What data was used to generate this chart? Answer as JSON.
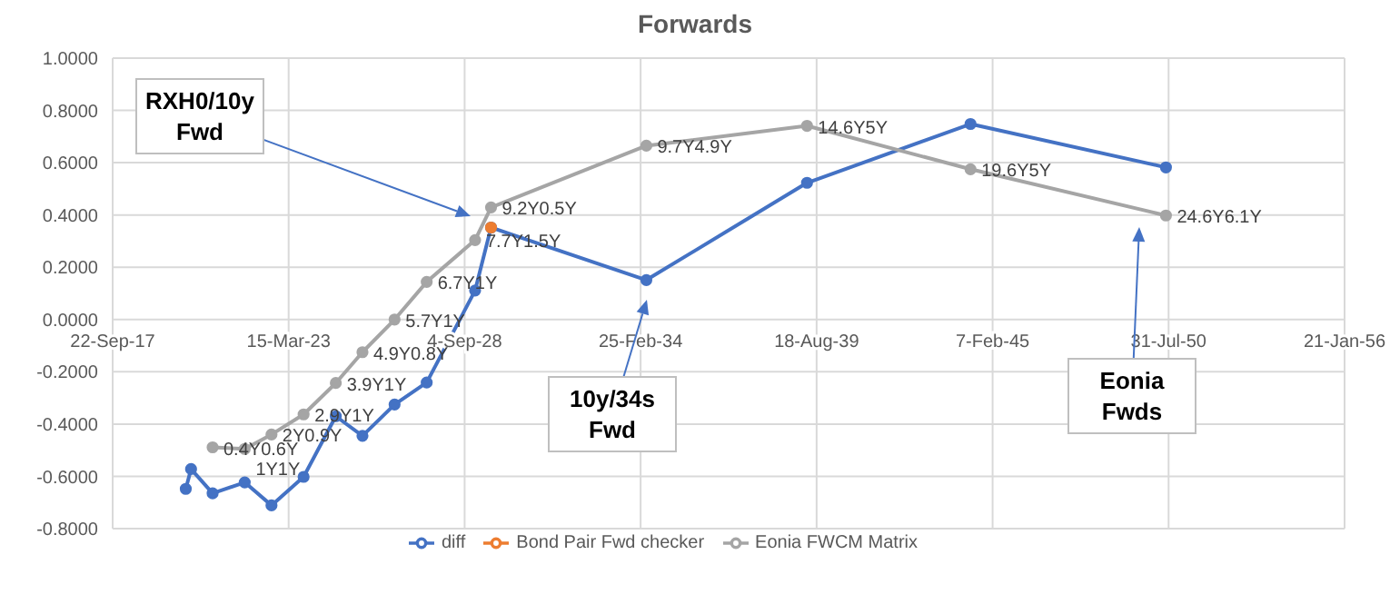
{
  "chart_data": {
    "type": "line",
    "title": "Forwards",
    "series": [
      {
        "name": "diff",
        "color": "#4472c4",
        "x": [
          "2020-01",
          "2020-03",
          "2020-11",
          "2021-11",
          "2022-09",
          "2023-09",
          "2024-09",
          "2025-07",
          "2026-07",
          "2027-07",
          "2029-01",
          "2029-07",
          "2034-05",
          "2039-05",
          "2044-06",
          "2050-07"
        ],
        "values": [
          -0.648,
          -0.572,
          -0.665,
          -0.623,
          -0.711,
          -0.602,
          -0.37,
          -0.445,
          -0.325,
          -0.241,
          0.111,
          0.352,
          0.151,
          0.523,
          0.748,
          0.582
        ]
      },
      {
        "name": "Bond Pair Fwd checker",
        "color": "#ed7d31",
        "x": [
          "2029-07"
        ],
        "values": [
          0.352
        ]
      },
      {
        "name": "Eonia FWCM Matrix",
        "color": "#a5a5a5",
        "x": [
          "2020-11",
          "2021-11",
          "2022-09",
          "2023-09",
          "2024-09",
          "2025-07",
          "2026-07",
          "2027-07",
          "2029-01",
          "2029-07",
          "2034-05",
          "2039-05",
          "2044-06",
          "2050-07"
        ],
        "values": [
          -0.489,
          -0.495,
          -0.44,
          -0.363,
          -0.243,
          -0.125,
          0.0,
          0.144,
          0.304,
          0.429,
          0.665,
          0.741,
          0.575,
          0.398
        ]
      }
    ],
    "xlim": [
      "2017-09-22",
      "2056-01-21"
    ],
    "xticks": [
      {
        "value": "2017-09-22",
        "label": "22-Sep-17"
      },
      {
        "value": "2023-03-15",
        "label": "15-Mar-23"
      },
      {
        "value": "2028-09-04",
        "label": "4-Sep-28"
      },
      {
        "value": "2034-02-25",
        "label": "25-Feb-34"
      },
      {
        "value": "2039-08-18",
        "label": "18-Aug-39"
      },
      {
        "value": "2045-02-07",
        "label": "7-Feb-45"
      },
      {
        "value": "2050-07-31",
        "label": "31-Jul-50"
      },
      {
        "value": "2056-01-21",
        "label": "21-Jan-56"
      }
    ],
    "ylim": [
      -0.8,
      1.0
    ],
    "yticks": [
      {
        "value": -0.8,
        "label": "-0.8000"
      },
      {
        "value": -0.6,
        "label": "-0.6000"
      },
      {
        "value": -0.4,
        "label": "-0.4000"
      },
      {
        "value": -0.2,
        "label": "-0.2000"
      },
      {
        "value": 0,
        "label": "0.0000"
      },
      {
        "value": 0.2,
        "label": "0.2000"
      },
      {
        "value": 0.4,
        "label": "0.4000"
      },
      {
        "value": 0.6,
        "label": "0.6000"
      },
      {
        "value": 0.8,
        "label": "0.8000"
      },
      {
        "value": 1.0,
        "label": "1.0000"
      }
    ],
    "annotations": [
      "RXH0/10y Fwd",
      "10y/34s Fwd",
      "Eonia Fwds",
      {
        "text": "0.4Y0.6Y",
        "x": "2020-11",
        "y": -0.489
      },
      {
        "text": "1Y1Y",
        "x": "2021-11",
        "y": -0.495
      },
      {
        "text": "2Y0.9Y",
        "x": "2022-09",
        "y": -0.44
      },
      {
        "text": "2.9Y1Y",
        "x": "2023-09",
        "y": -0.363
      },
      {
        "text": "3.9Y1Y",
        "x": "2024-09",
        "y": -0.243
      },
      {
        "text": "4.9Y0.8Y",
        "x": "2025-07",
        "y": -0.125
      },
      {
        "text": "5.7Y1Y",
        "x": "2026-07",
        "y": 0.0
      },
      {
        "text": "6.7Y1Y",
        "x": "2027-07",
        "y": 0.144
      },
      {
        "text": "7.7Y1.5Y",
        "x": "2029-01",
        "y": 0.304
      },
      {
        "text": "9.2Y0.5Y",
        "x": "2029-07",
        "y": 0.429
      },
      {
        "text": "9.7Y4.9Y",
        "x": "2034-05",
        "y": 0.665
      },
      {
        "text": "14.6Y5Y",
        "x": "2039-05",
        "y": 0.741
      },
      {
        "text": "19.6Y5Y",
        "x": "2044-06",
        "y": 0.575
      },
      {
        "text": "24.6Y6.1Y",
        "x": "2050-07",
        "y": 0.398
      }
    ],
    "grid": true,
    "legend": "bottom",
    "marker": "circle",
    "line_style": "solid"
  }
}
